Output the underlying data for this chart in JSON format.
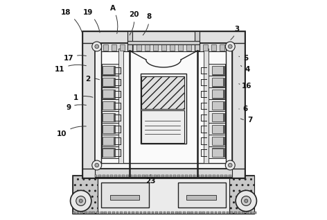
{
  "bg_color": "#ffffff",
  "lc": "#222222",
  "figsize": [
    4.72,
    3.17
  ],
  "dpi": 100,
  "label_positions": {
    "18": [
      0.055,
      0.945,
      0.13,
      0.845
    ],
    "19": [
      0.155,
      0.945,
      0.21,
      0.845
    ],
    "A": [
      0.268,
      0.965,
      0.285,
      0.84
    ],
    "20": [
      0.365,
      0.935,
      0.34,
      0.835
    ],
    "8": [
      0.435,
      0.925,
      0.4,
      0.835
    ],
    "3": [
      0.835,
      0.87,
      0.8,
      0.815
    ],
    "17": [
      0.065,
      0.735,
      0.155,
      0.745
    ],
    "5": [
      0.875,
      0.735,
      0.845,
      0.745
    ],
    "4": [
      0.885,
      0.685,
      0.848,
      0.71
    ],
    "2": [
      0.155,
      0.64,
      0.215,
      0.635
    ],
    "11": [
      0.025,
      0.685,
      0.155,
      0.7
    ],
    "16": [
      0.88,
      0.61,
      0.845,
      0.62
    ],
    "1": [
      0.1,
      0.555,
      0.185,
      0.555
    ],
    "9": [
      0.065,
      0.51,
      0.155,
      0.52
    ],
    "6": [
      0.875,
      0.505,
      0.845,
      0.505
    ],
    "7": [
      0.895,
      0.455,
      0.845,
      0.465
    ],
    "10": [
      0.035,
      0.39,
      0.155,
      0.425
    ],
    "23": [
      0.44,
      0.175,
      0.44,
      0.205
    ]
  }
}
